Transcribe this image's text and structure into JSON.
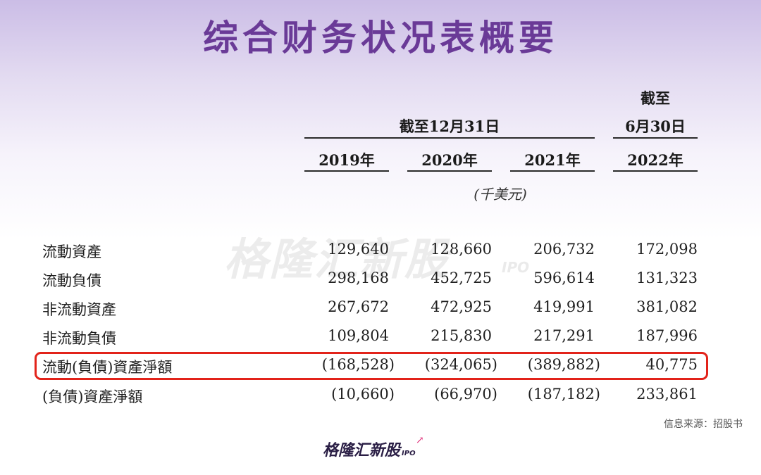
{
  "title": "综合财务状况表概要",
  "header": {
    "period_group": "截至12月31日",
    "last_period_line1": "截至",
    "last_period_line2": "6月30日",
    "years": [
      "2019年",
      "2020年",
      "2021年",
      "2022年"
    ],
    "unit": "(千美元)"
  },
  "rows": [
    {
      "label": "流動資產",
      "values": [
        "129,640",
        "128,660",
        "206,732",
        "172,098"
      ]
    },
    {
      "label": "流動負債",
      "values": [
        "298,168",
        "452,725",
        "596,614",
        "131,323"
      ]
    },
    {
      "label": "非流動資產",
      "values": [
        "267,672",
        "472,925",
        "419,991",
        "381,082"
      ]
    },
    {
      "label": "非流動負債",
      "values": [
        "109,804",
        "215,830",
        "217,291",
        "187,996"
      ]
    },
    {
      "label": "流動(負債)資產淨額",
      "values": [
        "(168,528)",
        "(324,065)",
        "(389,882)",
        "40,775"
      ],
      "highlighted": true
    },
    {
      "label": "(負債)資產淨額",
      "values": [
        "(10,660)",
        "(66,970)",
        "(187,182)",
        "233,861"
      ]
    }
  ],
  "watermark": {
    "text": "格隆汇新股",
    "sub": "IPO"
  },
  "source": "信息来源：招股书",
  "footer_logo": {
    "text": "格隆汇新股",
    "sub": "IPO"
  },
  "colors": {
    "title": "#6a3a97",
    "highlight_border": "#e2231a"
  }
}
